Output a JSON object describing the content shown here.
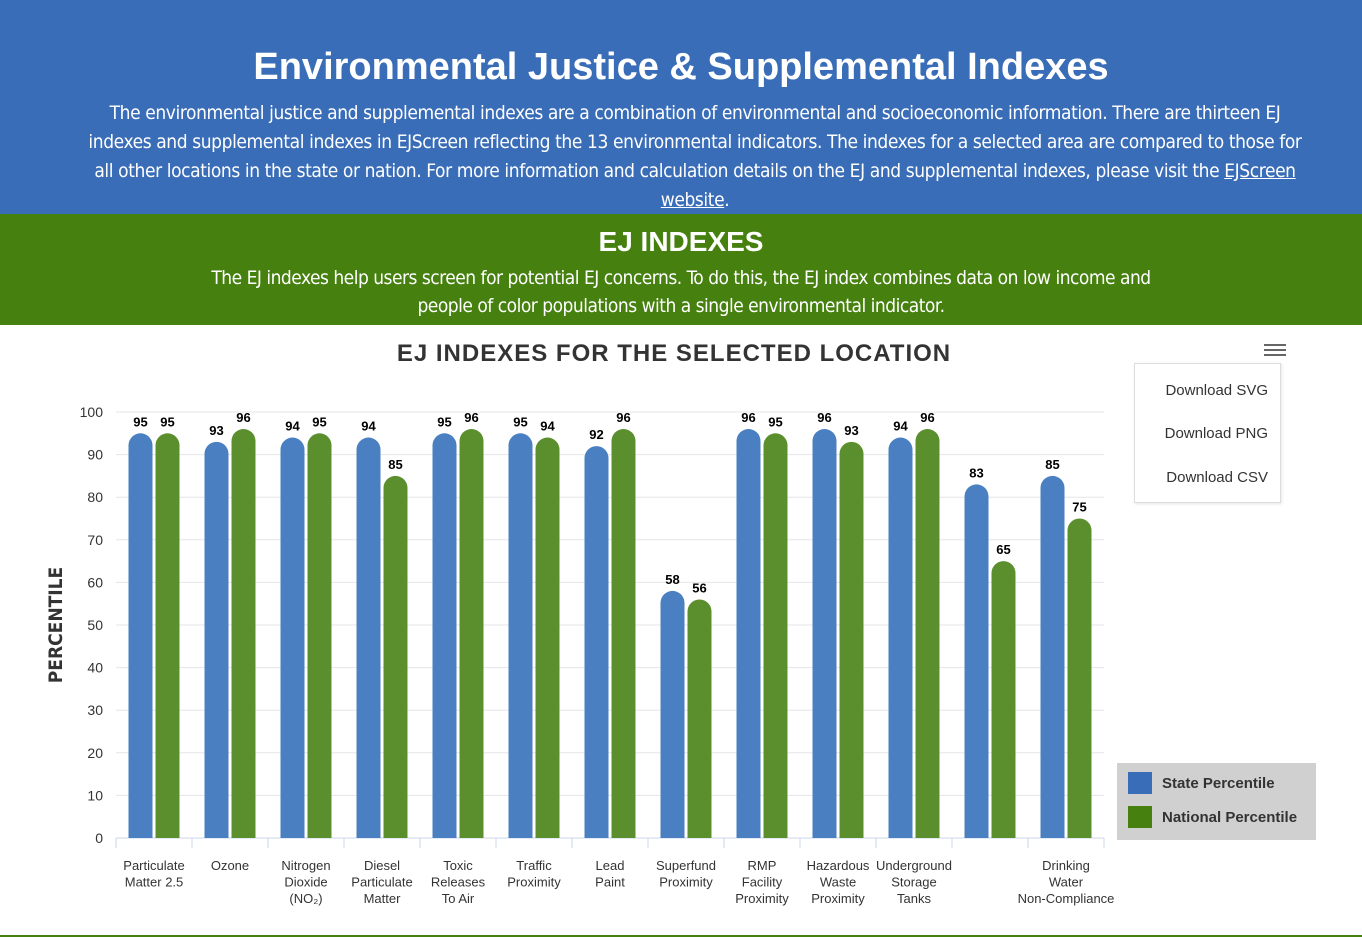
{
  "header": {
    "title": "Environmental Justice & Supplemental Indexes",
    "description_pre": "The environmental justice and supplemental indexes are a combination of environmental and socioeconomic information. There are thirteen EJ indexes and supplemental indexes in EJScreen reflecting the 13 environmental indicators. The indexes for a selected area are compared to those for all other locations in the state or nation. For more information and calculation details on the EJ and supplemental indexes, please visit the ",
    "link_text": "EJScreen website",
    "description_post": "."
  },
  "band": {
    "title": "EJ INDEXES",
    "description": "The EJ indexes help users screen for potential EJ concerns. To do this, the EJ index combines data on low income and people of color populations with a single environmental indicator."
  },
  "menu": {
    "items": [
      "Download SVG",
      "Download PNG",
      "Download CSV"
    ]
  },
  "colors": {
    "state": "#4a7fc1",
    "national": "#5b8f2e",
    "legend_state": "#3a6db7",
    "legend_national": "#46800f"
  },
  "chart_data": {
    "type": "bar",
    "title": "EJ INDEXES FOR THE SELECTED LOCATION",
    "ylabel": "PERCENTILE",
    "ylim": [
      0,
      100
    ],
    "yticks": [
      0,
      10,
      20,
      30,
      40,
      50,
      60,
      70,
      80,
      90,
      100
    ],
    "grid": true,
    "legend_position": "right-bottom",
    "categories": [
      [
        "Particulate",
        "Matter 2.5"
      ],
      [
        "Ozone"
      ],
      [
        "Nitrogen",
        "Dioxide",
        "(NO₂)"
      ],
      [
        "Diesel",
        "Particulate",
        "Matter"
      ],
      [
        "Toxic",
        "Releases",
        "To Air"
      ],
      [
        "Traffic",
        "Proximity"
      ],
      [
        "Lead",
        "Paint"
      ],
      [
        "Superfund",
        "Proximity"
      ],
      [
        "RMP",
        "Facility",
        "Proximity"
      ],
      [
        "Hazardous",
        "Waste",
        "Proximity"
      ],
      [
        "Underground",
        "Storage",
        "Tanks"
      ],
      [],
      [
        "Drinking",
        "Water",
        "Non-Compliance"
      ]
    ],
    "series": [
      {
        "name": "State Percentile",
        "values": [
          95,
          93,
          94,
          94,
          95,
          95,
          92,
          58,
          96,
          96,
          94,
          83,
          85
        ]
      },
      {
        "name": "National Percentile",
        "values": [
          95,
          96,
          95,
          85,
          96,
          94,
          96,
          56,
          95,
          93,
          96,
          65,
          75
        ]
      }
    ]
  }
}
